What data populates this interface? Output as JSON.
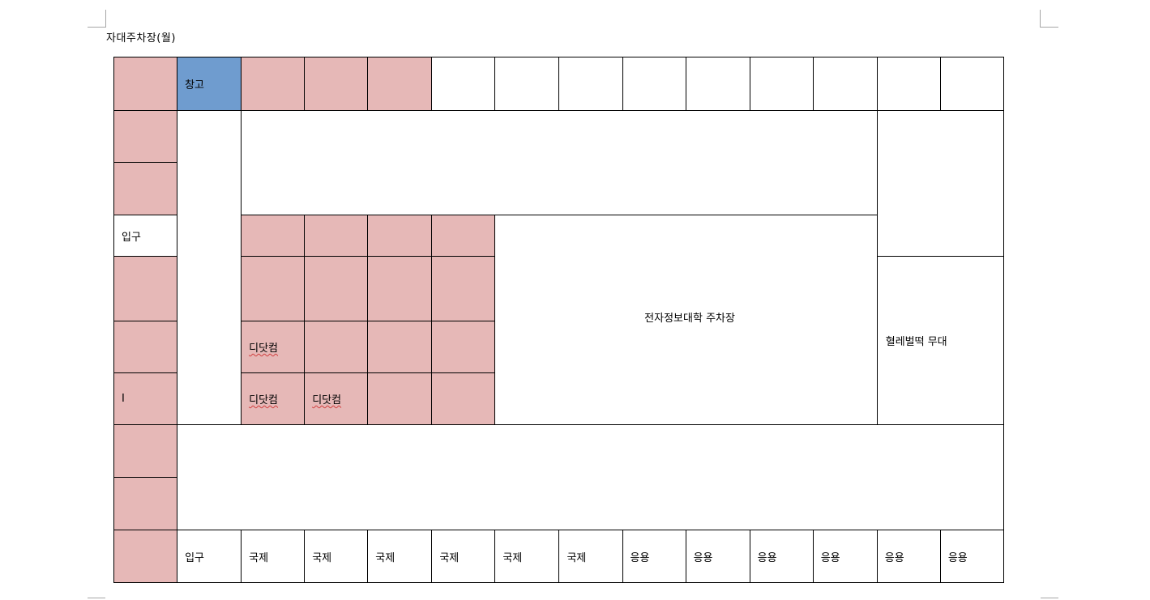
{
  "document": {
    "title": "자대주차장(월)"
  },
  "colors": {
    "pink": "#e6b8b7",
    "blue": "#6f9ccf",
    "border": "#000000",
    "spellcheck": "#d04040"
  },
  "grid": {
    "storage": "창고",
    "entrance_left": "입구",
    "cursor_mark": "I",
    "didotcom_1": "디닷컴",
    "didotcom_2": "디닷컴",
    "didotcom_3": "디닷컴",
    "parking_lot": "전자정보대학 주차장",
    "stage": "혈레벌떡 무대",
    "bottom_row": {
      "entrance": "입구",
      "spots": [
        "국제",
        "국제",
        "국제",
        "국제",
        "국제",
        "국제",
        "응용",
        "응용",
        "응용",
        "응용",
        "응용",
        "응용"
      ]
    }
  }
}
